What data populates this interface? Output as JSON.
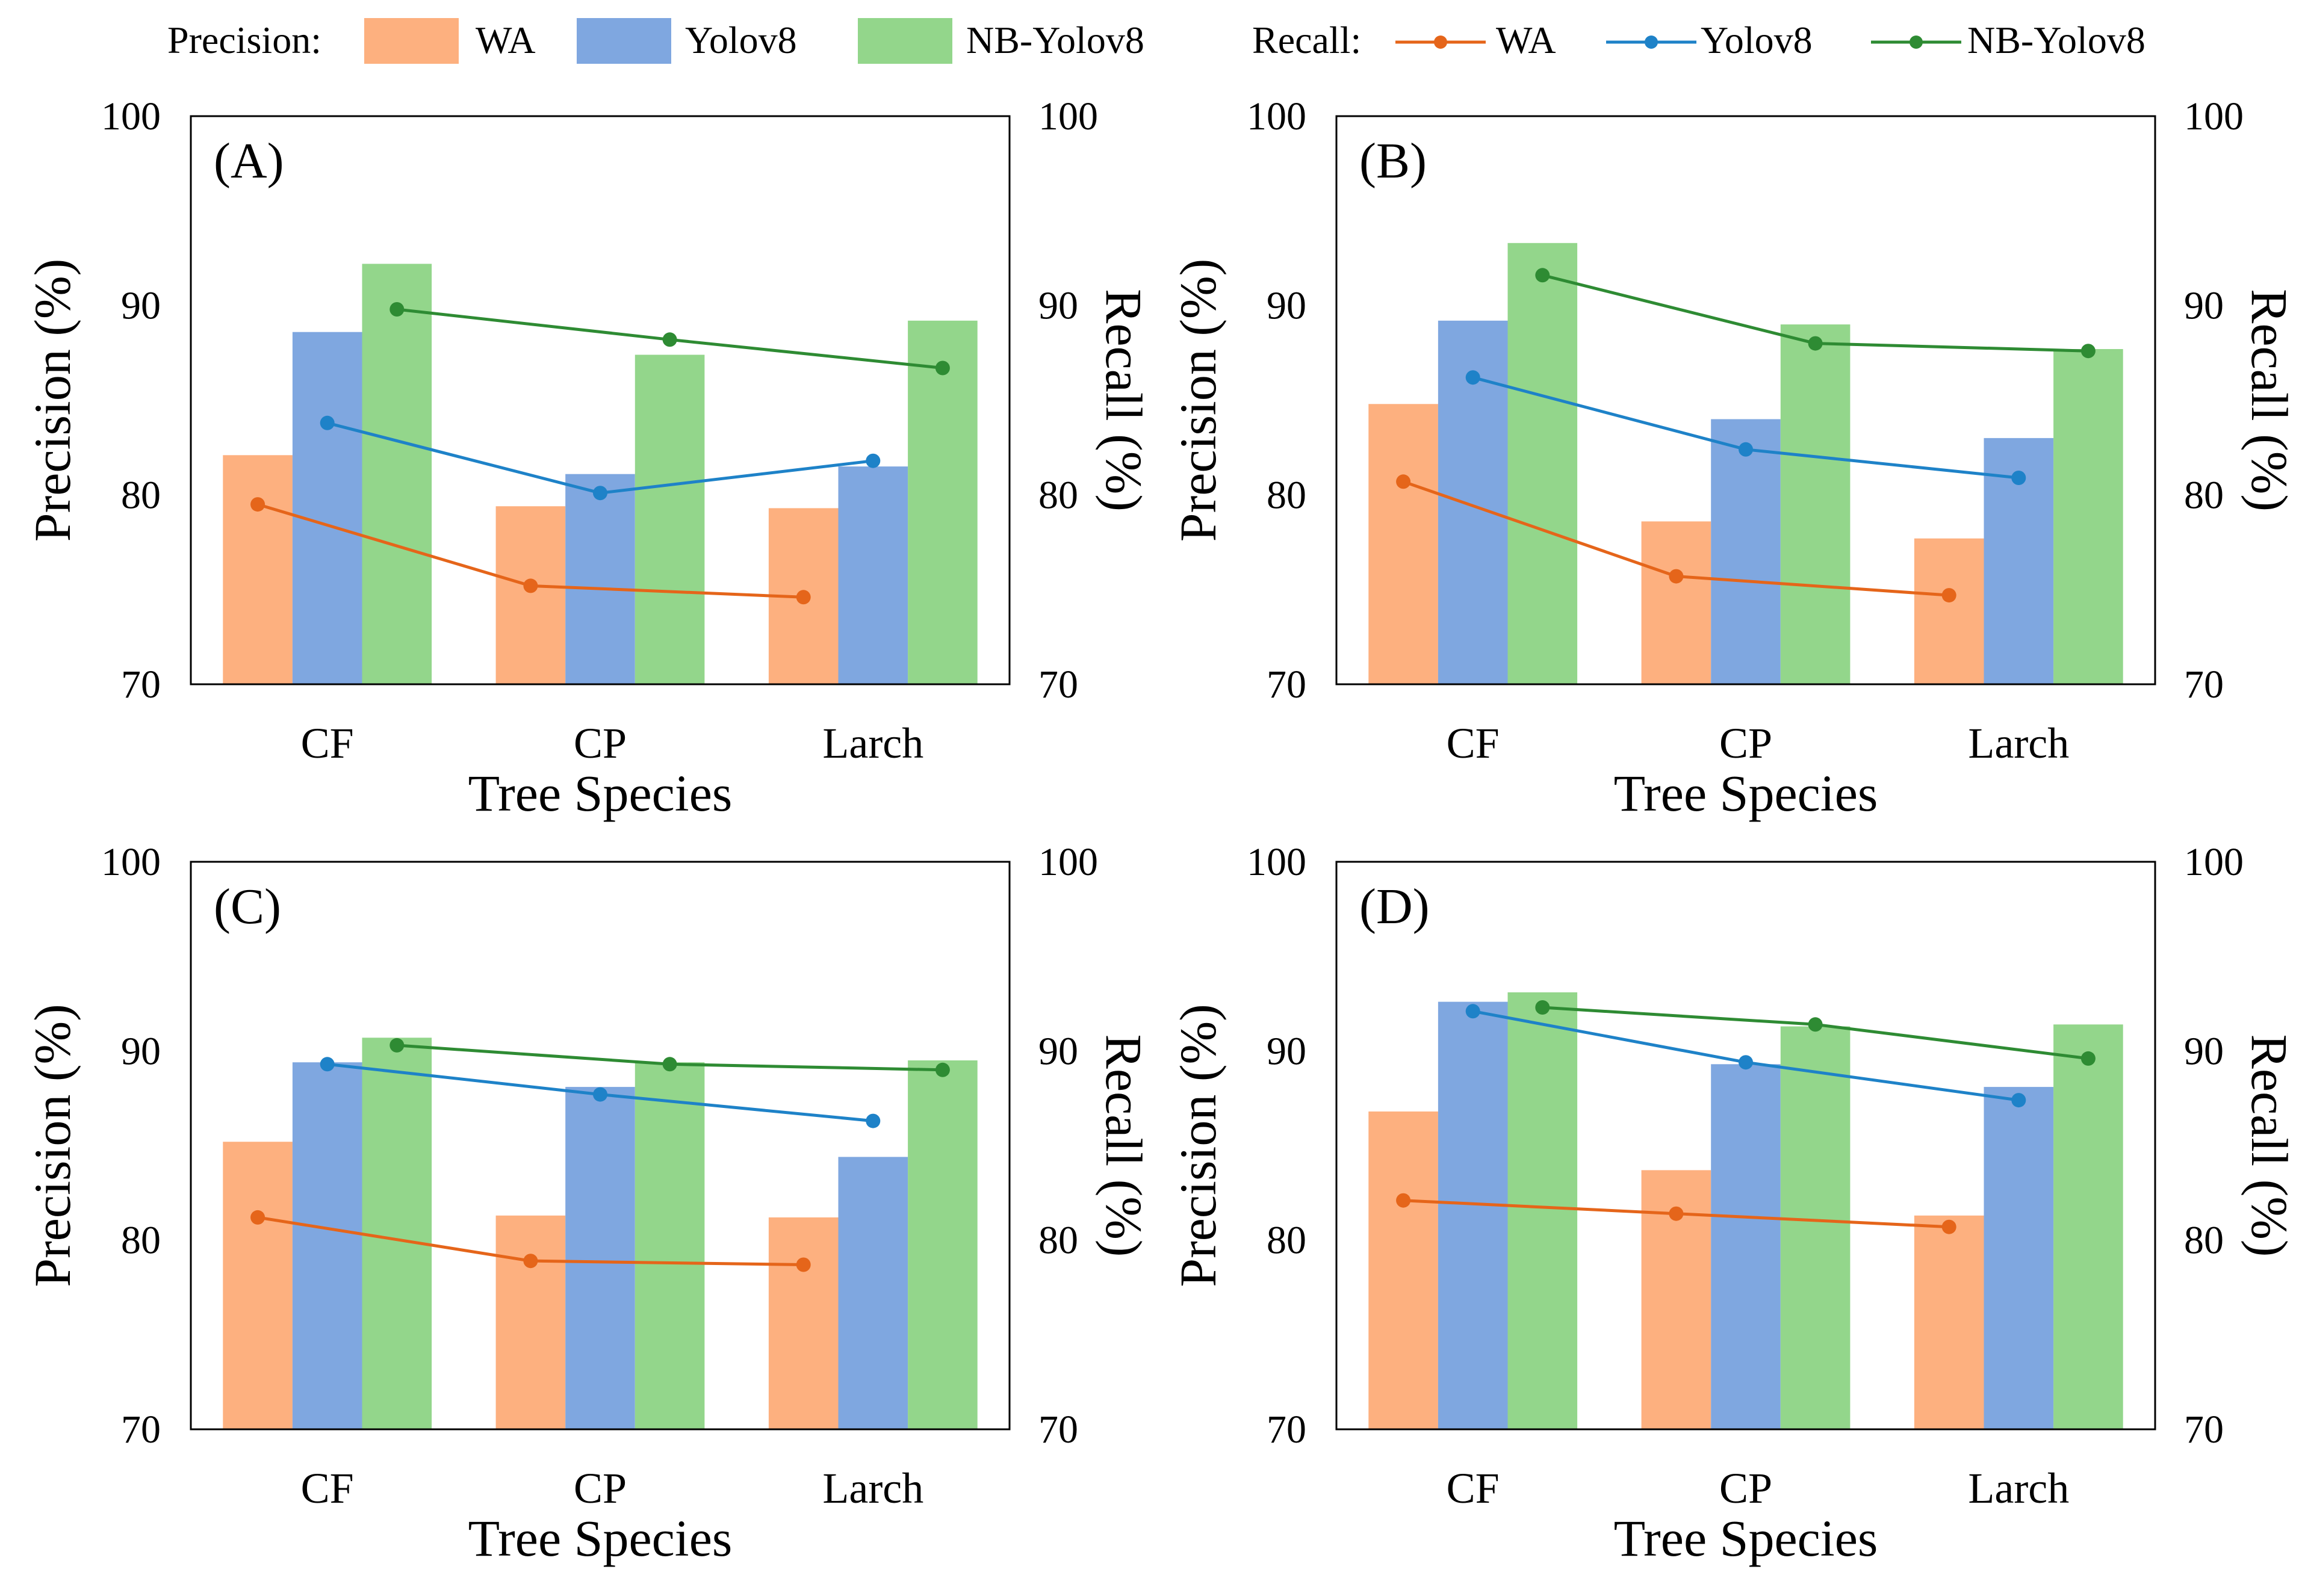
{
  "legend": {
    "precision_label": "Precision:",
    "recall_label": "Recall:",
    "series": [
      "WA",
      "Yolov8",
      "NB-Yolov8"
    ]
  },
  "colors": {
    "bar": [
      "#FDB07F",
      "#7FA7E0",
      "#93D68B"
    ],
    "line": [
      "#E5651A",
      "#1E82C8",
      "#2E8B33"
    ]
  },
  "chart_data": [
    {
      "type": "bar+line",
      "title": "(A)",
      "categories": [
        "CF",
        "CP",
        "Larch"
      ],
      "xlabel": "Tree Species",
      "ylabel": "Precision (%)",
      "y2label": "Recall (%)",
      "ylim": [
        70,
        100
      ],
      "y2lim": [
        70,
        100
      ],
      "yticks": [
        70,
        80,
        90,
        100
      ],
      "precision": [
        {
          "name": "WA",
          "values": [
            82.1,
            79.4,
            79.3
          ]
        },
        {
          "name": "Yolov8",
          "values": [
            88.6,
            81.1,
            81.5
          ]
        },
        {
          "name": "NB-Yolov8",
          "values": [
            92.2,
            87.4,
            89.2
          ]
        }
      ],
      "recall": [
        {
          "name": "WA",
          "values": [
            79.5,
            75.2,
            74.6
          ]
        },
        {
          "name": "Yolov8",
          "values": [
            83.8,
            80.1,
            81.8
          ]
        },
        {
          "name": "NB-Yolov8",
          "values": [
            89.8,
            88.2,
            86.7
          ]
        }
      ]
    },
    {
      "type": "bar+line",
      "title": "(B)",
      "categories": [
        "CF",
        "CP",
        "Larch"
      ],
      "xlabel": "Tree Species",
      "ylabel": "Precision (%)",
      "y2label": "Recall (%)",
      "ylim": [
        70,
        100
      ],
      "y2lim": [
        70,
        100
      ],
      "yticks": [
        70,
        80,
        90,
        100
      ],
      "precision": [
        {
          "name": "WA",
          "values": [
            84.8,
            78.6,
            77.7
          ]
        },
        {
          "name": "Yolov8",
          "values": [
            89.2,
            84.0,
            83.0
          ]
        },
        {
          "name": "NB-Yolov8",
          "values": [
            93.3,
            89.0,
            87.7
          ]
        }
      ],
      "recall": [
        {
          "name": "WA",
          "values": [
            80.7,
            75.7,
            74.7
          ]
        },
        {
          "name": "Yolov8",
          "values": [
            86.2,
            82.4,
            80.9
          ]
        },
        {
          "name": "NB-Yolov8",
          "values": [
            91.6,
            88.0,
            87.6
          ]
        }
      ]
    },
    {
      "type": "bar+line",
      "title": "(C)",
      "categories": [
        "CF",
        "CP",
        "Larch"
      ],
      "xlabel": "Tree Species",
      "ylabel": "Precision (%)",
      "y2label": "Recall (%)",
      "ylim": [
        70,
        100
      ],
      "y2lim": [
        70,
        100
      ],
      "yticks": [
        70,
        80,
        90,
        100
      ],
      "precision": [
        {
          "name": "WA",
          "values": [
            85.2,
            81.3,
            81.2
          ]
        },
        {
          "name": "Yolov8",
          "values": [
            89.4,
            88.1,
            84.4
          ]
        },
        {
          "name": "NB-Yolov8",
          "values": [
            90.7,
            89.4,
            89.5
          ]
        }
      ],
      "recall": [
        {
          "name": "WA",
          "values": [
            81.2,
            78.9,
            78.7
          ]
        },
        {
          "name": "Yolov8",
          "values": [
            89.3,
            87.7,
            86.3
          ]
        },
        {
          "name": "NB-Yolov8",
          "values": [
            90.3,
            89.3,
            89.0
          ]
        }
      ]
    },
    {
      "type": "bar+line",
      "title": "(D)",
      "categories": [
        "CF",
        "CP",
        "Larch"
      ],
      "xlabel": "Tree Species",
      "ylabel": "Precision (%)",
      "y2label": "Recall (%)",
      "ylim": [
        70,
        100
      ],
      "y2lim": [
        70,
        100
      ],
      "yticks": [
        70,
        80,
        90,
        100
      ],
      "precision": [
        {
          "name": "WA",
          "values": [
            86.8,
            83.7,
            81.3
          ]
        },
        {
          "name": "Yolov8",
          "values": [
            92.6,
            89.3,
            88.1
          ]
        },
        {
          "name": "NB-Yolov8",
          "values": [
            93.1,
            91.3,
            91.4
          ]
        }
      ],
      "recall": [
        {
          "name": "WA",
          "values": [
            82.1,
            81.4,
            80.7
          ]
        },
        {
          "name": "Yolov8",
          "values": [
            92.1,
            89.4,
            87.4
          ]
        },
        {
          "name": "NB-Yolov8",
          "values": [
            92.3,
            91.4,
            89.6
          ]
        }
      ]
    }
  ]
}
